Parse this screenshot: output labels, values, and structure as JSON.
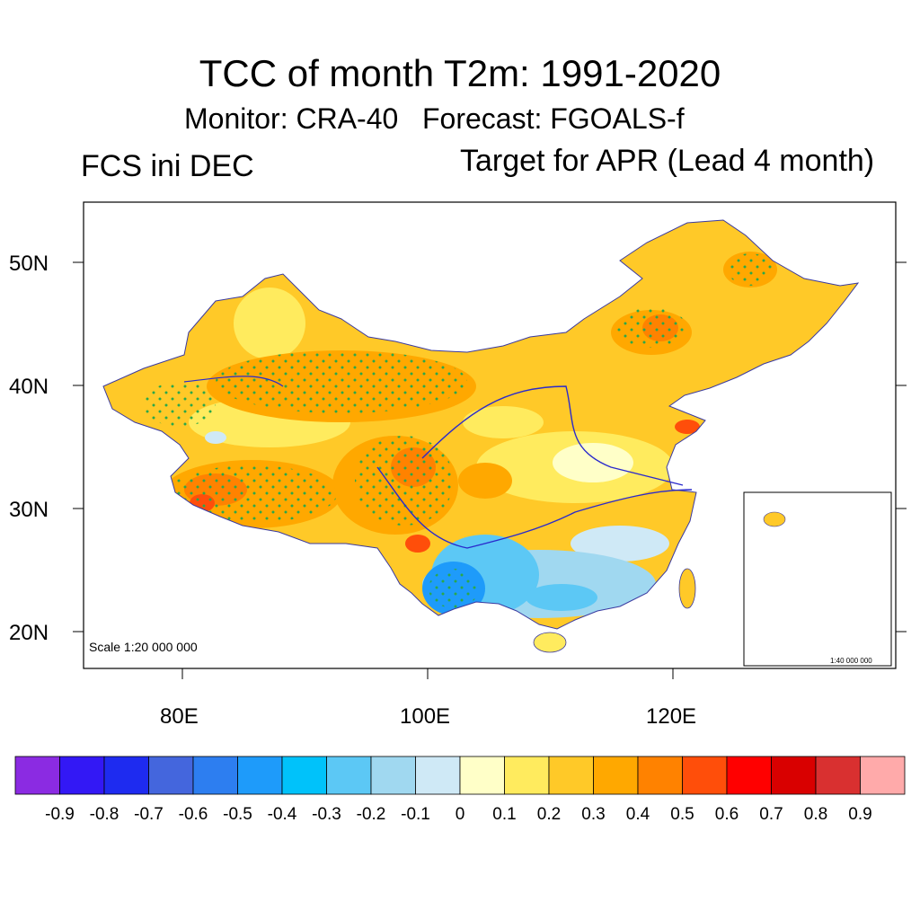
{
  "titles": {
    "main": "TCC of month T2m: 1991-2020",
    "subtitle": "Monitor: CRA-40   Forecast: FGOALS-f",
    "left": "FCS ini DEC",
    "right": "Target for APR (Lead 4 month)"
  },
  "map": {
    "scale_text": "Scale 1:20 000 000",
    "inset_scale_text": "1:40 000 000",
    "lat_labels": [
      "50N",
      "40N",
      "30N",
      "20N"
    ],
    "lon_labels": [
      "80E",
      "100E",
      "120E"
    ]
  },
  "colorbar": {
    "colors": [
      "#8b2be2",
      "#3318f5",
      "#1e2bf0",
      "#4466dd",
      "#2d7ef0",
      "#1e9bfa",
      "#00c2fa",
      "#5cc8f5",
      "#a0d8f0",
      "#cfe9f6",
      "#ffffc8",
      "#ffeb5e",
      "#ffc928",
      "#ffa800",
      "#ff8200",
      "#ff4e0a",
      "#ff0000",
      "#d90000",
      "#d93030",
      "#ffaaaa"
    ],
    "labels": [
      "-0.9",
      "-0.8",
      "-0.7",
      "-0.6",
      "-0.5",
      "-0.4",
      "-0.3",
      "-0.2",
      "-0.1",
      "0",
      "0.1",
      "0.2",
      "0.3",
      "0.4",
      "0.5",
      "0.6",
      "0.7",
      "0.8",
      "0.9"
    ]
  }
}
